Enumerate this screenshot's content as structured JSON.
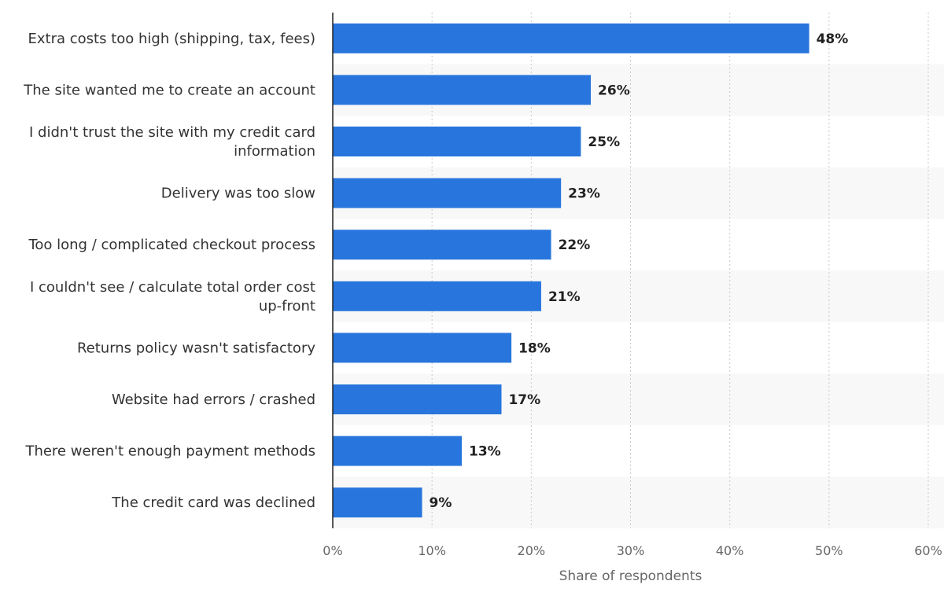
{
  "chart_data": {
    "type": "bar",
    "orientation": "horizontal",
    "categories": [
      "Extra costs too high (shipping, tax, fees)",
      "The site wanted me to create an account",
      "I didn't trust the site with my credit card information",
      "Delivery was too slow",
      "Too long / complicated checkout process",
      "I couldn't see / calculate total order cost up-front",
      "Returns policy wasn't satisfactory",
      "Website had errors / crashed",
      "There weren't enough payment methods",
      "The credit card was declined"
    ],
    "category_lines": [
      [
        "Extra costs too high (shipping, tax, fees)"
      ],
      [
        "The site wanted me to create an account"
      ],
      [
        "I didn't trust the site with my credit card",
        "information"
      ],
      [
        "Delivery was too slow"
      ],
      [
        "Too long / complicated checkout process"
      ],
      [
        "I couldn't see / calculate total order cost",
        "up-front"
      ],
      [
        "Returns policy wasn't satisfactory"
      ],
      [
        "Website had errors / crashed"
      ],
      [
        "There weren't enough payment methods"
      ],
      [
        "The credit card was declined"
      ]
    ],
    "values": [
      48,
      26,
      25,
      23,
      22,
      21,
      18,
      17,
      13,
      9
    ],
    "value_labels": [
      "48%",
      "26%",
      "25%",
      "23%",
      "22%",
      "21%",
      "18%",
      "17%",
      "13%",
      "9%"
    ],
    "xlabel": "Share of respondents",
    "ylabel": "",
    "xlim": [
      0,
      60
    ],
    "ticks": [
      0,
      10,
      20,
      30,
      40,
      50,
      60
    ],
    "tick_labels": [
      "0%",
      "10%",
      "20%",
      "30%",
      "40%",
      "50%",
      "60%"
    ],
    "grid": true,
    "bar_color": "#2876DD",
    "band_color": "#F8F8F8"
  }
}
